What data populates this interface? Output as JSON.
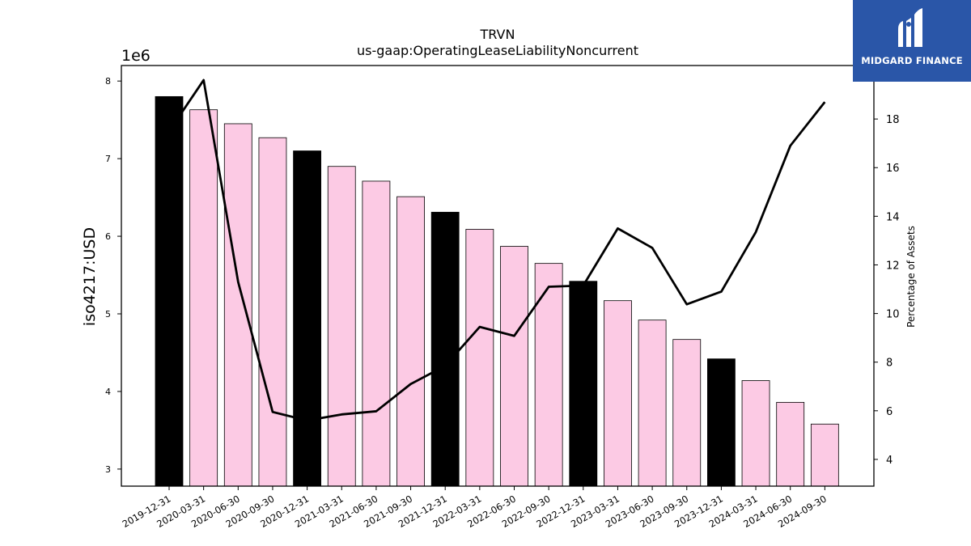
{
  "chart_data": {
    "type": "bar",
    "title": "TRVN",
    "subtitle": "us-gaap:OperatingLeaseLiabilityNoncurrent",
    "ylabel": "iso4217:USD",
    "y2label": "Percentage of Assets",
    "y_offset_label": "1e6",
    "y_scale": 1000000,
    "categories": [
      "2019-12-31",
      "2020-03-31",
      "2020-06-30",
      "2020-09-30",
      "2020-12-31",
      "2021-03-31",
      "2021-06-30",
      "2021-09-30",
      "2021-12-31",
      "2022-03-31",
      "2022-06-30",
      "2022-09-30",
      "2022-12-31",
      "2023-03-31",
      "2023-06-30",
      "2023-09-30",
      "2023-12-31",
      "2024-03-31",
      "2024-06-30",
      "2024-09-30"
    ],
    "series": [
      {
        "type": "bar",
        "axis": "left",
        "values": [
          7800000,
          7630000,
          7450000,
          7270000,
          7100000,
          6900000,
          6710000,
          6510000,
          6310000,
          6090000,
          5870000,
          5650000,
          5420000,
          5170000,
          4920000,
          4670000,
          4420000,
          4140000,
          3860000,
          3580000
        ],
        "colors": [
          "#000000",
          "#fccae4",
          "#fccae4",
          "#fccae4",
          "#000000",
          "#fccae4",
          "#fccae4",
          "#fccae4",
          "#000000",
          "#fccae4",
          "#fccae4",
          "#fccae4",
          "#000000",
          "#fccae4",
          "#fccae4",
          "#fccae4",
          "#000000",
          "#fccae4",
          "#fccae4",
          "#fccae4"
        ]
      },
      {
        "type": "line",
        "axis": "right",
        "color": "#000000",
        "values": [
          17.5,
          19.6,
          11.3,
          5.95,
          5.6,
          5.85,
          5.98,
          7.1,
          7.85,
          9.45,
          9.08,
          11.1,
          11.15,
          13.5,
          12.7,
          10.38,
          10.9,
          13.35,
          16.9,
          18.7
        ]
      }
    ],
    "ylim": [
      2.78,
      8.2
    ],
    "y2lim": [
      2.9,
      20.2
    ],
    "yticks": [
      3,
      4,
      5,
      6,
      7,
      8
    ],
    "y2ticks": [
      4,
      6,
      8,
      10,
      12,
      14,
      16,
      18
    ],
    "grid": false,
    "legend": "none"
  },
  "logo": {
    "text": "MIDGARD FINANCE",
    "bg_color": "#2a56a8"
  }
}
